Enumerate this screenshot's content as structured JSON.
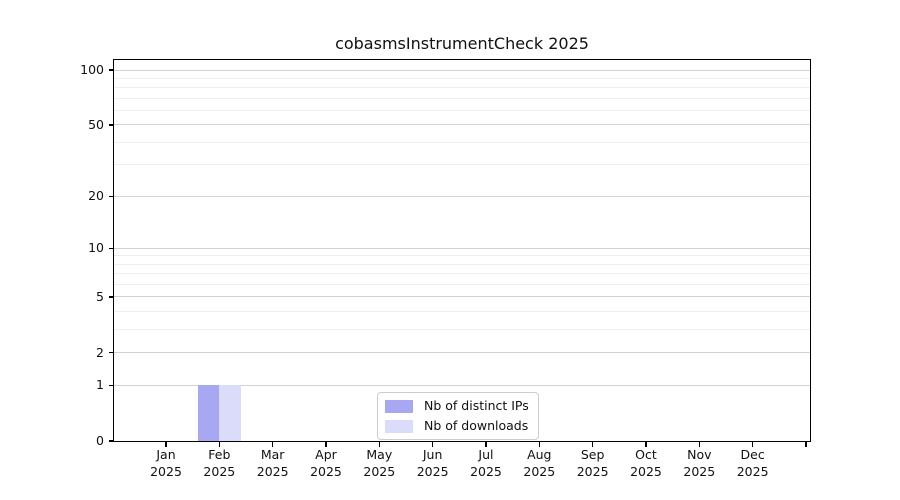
{
  "chart_data": {
    "type": "bar",
    "title": "cobasmsInstrumentCheck 2025",
    "xlabel": "",
    "ylabel": "",
    "categories": [
      "Jan",
      "Feb",
      "Mar",
      "Apr",
      "May",
      "Jun",
      "Jul",
      "Aug",
      "Sep",
      "Oct",
      "Nov",
      "Dec"
    ],
    "x_tick_year_line": "2025",
    "series": [
      {
        "name": "Nb of distinct IPs",
        "color": "#a8a8f2",
        "values": [
          0,
          1,
          0,
          0,
          0,
          0,
          0,
          0,
          0,
          0,
          0,
          0
        ]
      },
      {
        "name": "Nb of downloads",
        "color": "#dbdbfa",
        "values": [
          0,
          1,
          0,
          0,
          0,
          0,
          0,
          0,
          0,
          0,
          0,
          0
        ]
      }
    ],
    "y_axis": {
      "scale": "log1p",
      "major_ticks": [
        0,
        1,
        2,
        5,
        10,
        20,
        50,
        100
      ],
      "minor_ticks": [
        3,
        4,
        6,
        7,
        8,
        9,
        30,
        40,
        60,
        70,
        80,
        90
      ],
      "ylim": [
        0,
        114
      ]
    },
    "grid": {
      "enabled": true,
      "major_color": "#d2d2d2",
      "minor_color": "#eeeeee"
    },
    "legend": {
      "position": "bottom-center"
    }
  }
}
